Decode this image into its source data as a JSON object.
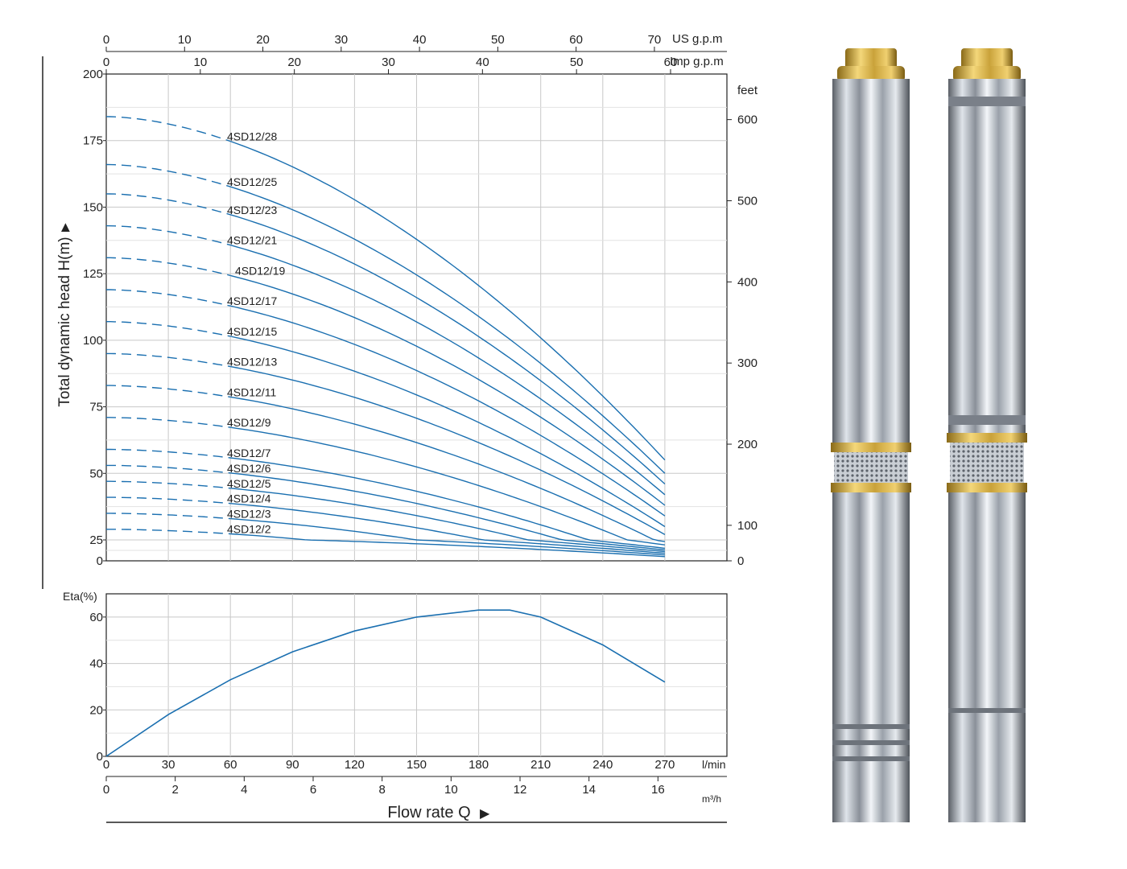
{
  "chart_data": [
    {
      "type": "line",
      "ylabel": "Total dynamic head H(m)",
      "y_unit_secondary": "feet",
      "x_units": {
        "primary": "l/min",
        "secondary": "m³/h",
        "top1": "US g.p.m",
        "top2": "Imp g.p.m"
      },
      "xlim": [
        0,
        300
      ],
      "ylim": [
        0,
        200
      ],
      "x_ticks": [
        0,
        30,
        60,
        90,
        120,
        150,
        180,
        210,
        240,
        270
      ],
      "y_ticks": [
        0,
        25,
        50,
        75,
        100,
        125,
        150,
        175,
        200
      ],
      "y_tick_labels": [
        "0",
        "25",
        "50",
        "75",
        "100",
        "125",
        "150",
        "175",
        "200"
      ],
      "feet_ticks": [
        0,
        100,
        200,
        300,
        400,
        500,
        600
      ],
      "us_gpm_ticks": [
        0,
        10,
        20,
        30,
        40,
        50,
        60,
        70
      ],
      "imp_gpm_ticks": [
        0,
        10,
        20,
        30,
        40,
        50,
        60
      ],
      "m3h_ticks": [
        0,
        2,
        4,
        6,
        8,
        10,
        12,
        14,
        16
      ],
      "grid": true,
      "dashed_segment": "Q from 0 to 60 l/min",
      "series": [
        {
          "name": "4SD12/28",
          "shutoff": 184,
          "end": 55
        },
        {
          "name": "4SD12/25",
          "shutoff": 166,
          "end": 50
        },
        {
          "name": "4SD12/23",
          "shutoff": 155,
          "end": 46
        },
        {
          "name": "4SD12/21",
          "shutoff": 143,
          "end": 42
        },
        {
          "name": "4SD12/19",
          "shutoff": 131,
          "end": 38
        },
        {
          "name": "4SD12/17",
          "shutoff": 119,
          "end": 34
        },
        {
          "name": "4SD12/15",
          "shutoff": 107,
          "end": 30
        },
        {
          "name": "4SD12/13",
          "shutoff": 95,
          "end": 27
        },
        {
          "name": "4SD12/11",
          "shutoff": 83,
          "end": 23
        },
        {
          "name": "4SD12/9",
          "shutoff": 71,
          "end": 19
        },
        {
          "name": "4SD12/7",
          "shutoff": 59,
          "end": 15
        },
        {
          "name": "4SD12/6",
          "shutoff": 53,
          "end": 13
        },
        {
          "name": "4SD12/5",
          "shutoff": 47,
          "end": 11
        },
        {
          "name": "4SD12/4",
          "shutoff": 41,
          "end": 9
        },
        {
          "name": "4SD12/3",
          "shutoff": 35,
          "end": 7
        },
        {
          "name": "4SD12/2",
          "shutoff": 29,
          "end": 5
        }
      ],
      "line_color": "#1a6fb0"
    },
    {
      "type": "line",
      "ylabel": "Eta(%)",
      "xlabel": "Flow  rate Q",
      "xlim": [
        0,
        300
      ],
      "ylim": [
        0,
        70
      ],
      "y_ticks": [
        0,
        20,
        40,
        60
      ],
      "x_ticks": [
        0,
        30,
        60,
        90,
        120,
        150,
        180,
        210,
        240,
        270
      ],
      "x": [
        0,
        30,
        60,
        90,
        120,
        150,
        180,
        195,
        210,
        240,
        270
      ],
      "y": [
        0,
        18,
        33,
        45,
        54,
        60,
        63,
        63,
        60,
        48,
        32
      ],
      "line_color": "#1a6fb0"
    }
  ],
  "product": {
    "image": "two stainless steel submersible pumps with brass top fittings"
  }
}
